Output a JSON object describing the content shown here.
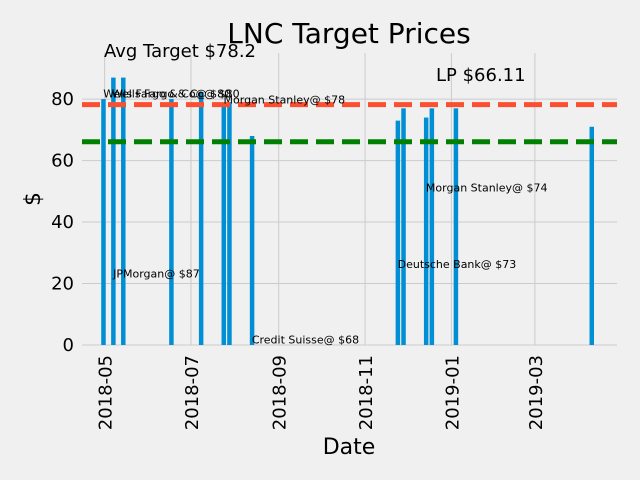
{
  "chart_data": {
    "type": "bar",
    "title": "LNC Target Prices",
    "xlabel": "Date",
    "ylabel": "$",
    "ylim": [
      0,
      95
    ],
    "xlim": [
      "2018-04-15",
      "2019-04-28"
    ],
    "grid": true,
    "x_ticks": [
      "2018-05",
      "2018-07",
      "2018-09",
      "2018-11",
      "2019-01",
      "2019-03"
    ],
    "y_ticks": [
      0,
      20,
      40,
      60,
      80
    ],
    "bar_color": "#008fd5",
    "bars": [
      {
        "x": "2018-04-30",
        "value": 80
      },
      {
        "x": "2018-05-07",
        "value": 87
      },
      {
        "x": "2018-05-14",
        "value": 87
      },
      {
        "x": "2018-06-17",
        "value": 80
      },
      {
        "x": "2018-07-08",
        "value": 82
      },
      {
        "x": "2018-07-24",
        "value": 78
      },
      {
        "x": "2018-07-28",
        "value": 79
      },
      {
        "x": "2018-08-13",
        "value": 68
      },
      {
        "x": "2018-11-24",
        "value": 73
      },
      {
        "x": "2018-11-28",
        "value": 77
      },
      {
        "x": "2018-12-14",
        "value": 74
      },
      {
        "x": "2018-12-18",
        "value": 77
      },
      {
        "x": "2019-01-04",
        "value": 77
      },
      {
        "x": "2019-04-10",
        "value": 71
      }
    ],
    "reference_lines": [
      {
        "name": "Avg Target",
        "value": 78.2,
        "color": "#fc4f30",
        "label": "Avg Target $78.2"
      },
      {
        "name": "LP",
        "value": 66.11,
        "color": "#008000",
        "label": "LP $66.11"
      }
    ],
    "annotations": [
      {
        "text": "Wells Fargo & Co@ $80",
        "x": "2018-04-30",
        "y": 80.5
      },
      {
        "text": "Wells Fargo & Co@ $80",
        "x": "2018-05-06",
        "y": 80.5
      },
      {
        "text": "Morgan Stanley@ $78",
        "x": "2018-07-24",
        "y": 78.5
      },
      {
        "text": "JPMorgan@ $87",
        "x": "2018-05-07",
        "y": 22
      },
      {
        "text": "Credit Suisse@ $68",
        "x": "2018-08-13",
        "y": 0.5
      },
      {
        "text": "Deutsche Bank@ $73",
        "x": "2018-11-24",
        "y": 25
      },
      {
        "text": "Morgan Stanley@ $74",
        "x": "2018-12-14",
        "y": 50
      }
    ]
  }
}
